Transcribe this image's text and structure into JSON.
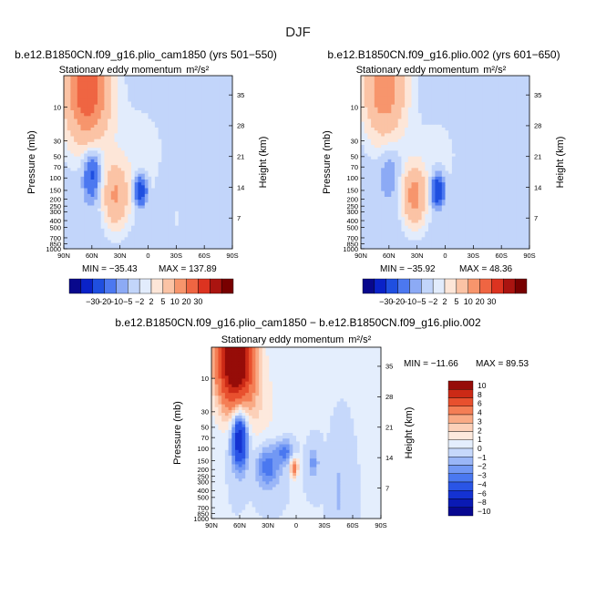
{
  "figure_title": "DJF",
  "chart_data": [
    {
      "type": "heatmap",
      "id": "top-left",
      "case_title": "b.e12.B1850CN.f09_g16.plio_cam1850 (yrs 501−550)",
      "title": "Stationary eddy momentum",
      "units": "m²/s²",
      "xlabel": "",
      "ylabel": "Pressure (mb)",
      "y2label": "Height (km)",
      "x_ticks": [
        "90N",
        "60N",
        "30N",
        "0",
        "30S",
        "60S",
        "90S"
      ],
      "pressure_ticks": [
        "10",
        "30",
        "50",
        "70",
        "100",
        "150",
        "200",
        "250",
        "300",
        "400",
        "500",
        "700",
        "850",
        "1000"
      ],
      "height_ticks": [
        "35",
        "28",
        "21",
        "14",
        "7"
      ],
      "min_label": "MIN = −35.43",
      "max_label": "MAX = 137.89",
      "min": -35.43,
      "max": 137.89,
      "features": [
        {
          "lat": 65,
          "p": 5,
          "amp": 40,
          "wlat": 16,
          "wlogp": 0.55
        },
        {
          "lat": 60,
          "p": 80,
          "amp": -14,
          "wlat": 7,
          "wlogp": 0.28
        },
        {
          "lat": 35,
          "p": 180,
          "amp": 20,
          "wlat": 9,
          "wlogp": 0.3
        },
        {
          "lat": 8,
          "p": 150,
          "amp": -18,
          "wlat": 5,
          "wlogp": 0.16
        },
        {
          "lat": 10,
          "p": 60,
          "amp": 4,
          "wlat": 22,
          "wlogp": 0.6
        },
        {
          "lat": -15,
          "p": 150,
          "amp": -3,
          "wlat": 4,
          "wlogp": 0.2
        },
        {
          "lat": -30,
          "p": 400,
          "amp": 1.8,
          "wlat": 6,
          "wlogp": 0.3
        }
      ]
    },
    {
      "type": "heatmap",
      "id": "top-right",
      "case_title": "b.e12.B1850CN.f09_g16.plio.002 (yrs 601−650)",
      "title": "Stationary eddy momentum",
      "units": "m²/s²",
      "xlabel": "",
      "ylabel": "Pressure (mb)",
      "y2label": "Height (km)",
      "x_ticks": [
        "90N",
        "60N",
        "30N",
        "0",
        "30S",
        "60S",
        "90S"
      ],
      "pressure_ticks": [
        "10",
        "30",
        "50",
        "70",
        "100",
        "150",
        "200",
        "250",
        "300",
        "400",
        "500",
        "700",
        "850",
        "1000"
      ],
      "height_ticks": [
        "35",
        "28",
        "21",
        "14",
        "7"
      ],
      "min_label": "MIN = −35.92",
      "max_label": "MAX = 48.36",
      "min": -35.92,
      "max": 48.36,
      "features": [
        {
          "lat": 65,
          "p": 5,
          "amp": 28,
          "wlat": 15,
          "wlogp": 0.5
        },
        {
          "lat": 60,
          "p": 80,
          "amp": -6,
          "wlat": 7,
          "wlogp": 0.28
        },
        {
          "lat": 33,
          "p": 180,
          "amp": 24,
          "wlat": 8,
          "wlogp": 0.28
        },
        {
          "lat": 8,
          "p": 150,
          "amp": -20,
          "wlat": 5,
          "wlogp": 0.16
        },
        {
          "lat": 10,
          "p": 60,
          "amp": 3,
          "wlat": 22,
          "wlogp": 0.6
        },
        {
          "lat": -15,
          "p": 150,
          "amp": -2.5,
          "wlat": 4,
          "wlogp": 0.2
        },
        {
          "lat": -30,
          "p": 400,
          "amp": 1.5,
          "wlat": 6,
          "wlogp": 0.3
        }
      ]
    },
    {
      "type": "heatmap",
      "id": "bottom-diff",
      "case_title": "b.e12.B1850CN.f09_g16.plio_cam1850 − b.e12.B1850CN.f09_g16.plio.002",
      "title": "Stationary eddy momentum",
      "units": "m²/s²",
      "xlabel": "",
      "ylabel": "Pressure (mb)",
      "y2label": "Height (km)",
      "x_ticks": [
        "90N",
        "60N",
        "30N",
        "0",
        "30S",
        "60S",
        "90S"
      ],
      "pressure_ticks": [
        "10",
        "30",
        "50",
        "70",
        "100",
        "150",
        "200",
        "250",
        "300",
        "400",
        "500",
        "700",
        "850",
        "1000"
      ],
      "height_ticks": [
        "35",
        "28",
        "21",
        "14",
        "7"
      ],
      "min_label": "MIN = −11.66",
      "max_label": "MAX =  89.53",
      "min": -11.66,
      "max": 89.53,
      "features": [
        {
          "lat": 65,
          "p": 5,
          "amp": 14,
          "wlat": 14,
          "wlogp": 0.5
        },
        {
          "lat": 60,
          "p": 70,
          "amp": -9,
          "wlat": 6,
          "wlogp": 0.3
        },
        {
          "lat": 30,
          "p": 180,
          "amp": -4,
          "wlat": 9,
          "wlogp": 0.22
        },
        {
          "lat": 12,
          "p": 110,
          "amp": -3.5,
          "wlat": 6,
          "wlogp": 0.12
        },
        {
          "lat": 2,
          "p": 190,
          "amp": 5,
          "wlat": 3,
          "wlogp": 0.1
        },
        {
          "lat": -18,
          "p": 160,
          "amp": -2.5,
          "wlat": 4,
          "wlogp": 0.15
        },
        {
          "lat": -45,
          "p": 400,
          "amp": -1.5,
          "wlat": 4,
          "wlogp": 0.3
        },
        {
          "lat": 40,
          "p": 30,
          "amp": 1.3,
          "wlat": 20,
          "wlogp": 0.5
        }
      ]
    }
  ],
  "colorbars": {
    "top": {
      "labels": [
        "−30",
        "−20",
        "−10",
        "−5",
        "−2",
        "2",
        "5",
        "10",
        "20",
        "30"
      ],
      "levels": [
        -30,
        -20,
        -10,
        -5,
        -2,
        2,
        5,
        10,
        20,
        30
      ]
    },
    "diff": {
      "labels": [
        "10",
        "8",
        "6",
        "4",
        "3",
        "2",
        "1",
        "0",
        "−1",
        "−2",
        "−3",
        "−4",
        "−6",
        "−8",
        "−10"
      ],
      "levels": [
        -10,
        -8,
        -6,
        -4,
        -3,
        -2,
        -1,
        0,
        1,
        2,
        3,
        4,
        6,
        8,
        10
      ]
    }
  },
  "palette": {
    "top": [
      "#08088c",
      "#0a22c8",
      "#1f4fe0",
      "#4c78f0",
      "#8caaf5",
      "#c2d5fa",
      "#e2ecfc",
      "#fde6d8",
      "#fbc3a5",
      "#f7956c",
      "#ef6542",
      "#dc3320",
      "#aa1410",
      "#780000"
    ],
    "diff": [
      "#080890",
      "#0a1ab4",
      "#1432d2",
      "#2a55e6",
      "#4a78f0",
      "#7298f4",
      "#9ab6f7",
      "#c6d8fb",
      "#e4eefd",
      "#fde9dd",
      "#fcd0b8",
      "#f9aa85",
      "#f47e55",
      "#e8502e",
      "#cc2a16",
      "#960c08"
    ]
  }
}
